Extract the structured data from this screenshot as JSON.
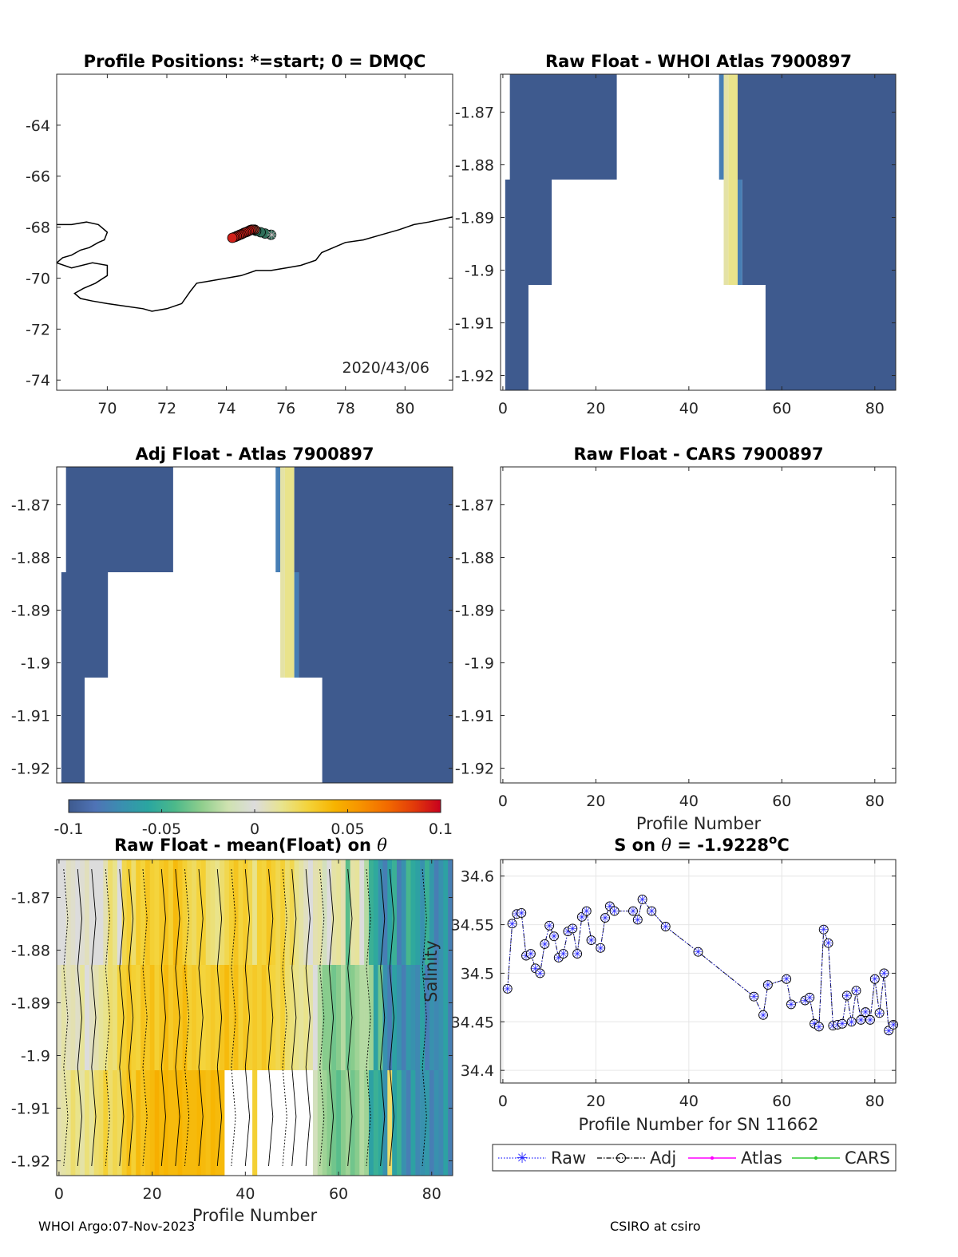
{
  "footer": {
    "left": "WHOI Argo:07-Nov-2023",
    "right": "CSIRO at csiro"
  },
  "colors": {
    "dark_blue": "#3e5a8e",
    "light_green": "#a8d08d",
    "green": "#7fcf80",
    "marker_blue": "#2a2aff",
    "atlas_line": "#ff00ff",
    "cars_line": "#33cc33"
  },
  "chart_data": [
    {
      "id": "positions",
      "type": "scatter",
      "title": "Profile Positions: *=start; 0 = DMQC",
      "xlim": [
        68.3,
        81.6
      ],
      "ylim": [
        -74.4,
        -62.0
      ],
      "xticks": [
        "70",
        "72",
        "74",
        "76",
        "78",
        "80"
      ],
      "yticks": [
        "-64",
        "-66",
        "-68",
        "-70",
        "-72",
        "-74"
      ],
      "annotation": "2020/43/06",
      "coastline_lon": [
        68.3,
        68.8,
        69.3,
        69.7,
        70.0,
        69.9,
        69.7,
        69.4,
        69.1,
        68.8,
        68.5,
        68.3,
        68.8,
        69.5,
        70.0,
        70.0,
        69.6,
        69.2,
        68.9,
        69.1,
        69.5,
        70.0,
        70.6,
        71.2,
        71.5,
        72.0,
        72.5,
        72.8,
        73.0,
        73.5,
        74.0,
        74.5,
        75.0,
        75.5,
        76.0,
        76.5,
        77.0,
        77.2,
        77.6,
        78.0,
        78.6,
        79.2,
        79.8,
        80.3,
        80.8,
        81.2,
        81.6
      ],
      "coastline_lat": [
        -67.9,
        -67.9,
        -67.8,
        -67.9,
        -68.2,
        -68.5,
        -68.6,
        -68.8,
        -68.9,
        -69.1,
        -69.2,
        -69.4,
        -69.6,
        -69.4,
        -69.5,
        -69.9,
        -70.2,
        -70.4,
        -70.6,
        -70.8,
        -70.9,
        -71.0,
        -71.1,
        -71.2,
        -71.3,
        -71.2,
        -71.0,
        -70.5,
        -70.2,
        -70.1,
        -70.0,
        -69.9,
        -69.7,
        -69.7,
        -69.6,
        -69.5,
        -69.3,
        -69.0,
        -68.8,
        -68.6,
        -68.5,
        -68.3,
        -68.1,
        -67.9,
        -67.8,
        -67.7,
        -67.6
      ],
      "profiles_lon": [
        75.5,
        75.3,
        75.15,
        75.0,
        74.95,
        74.9,
        74.85,
        74.8,
        74.75,
        74.7,
        74.65,
        74.6,
        74.55,
        74.5,
        74.45,
        74.4,
        74.35,
        74.3,
        74.25,
        74.2
      ],
      "profiles_lat": [
        -68.3,
        -68.25,
        -68.2,
        -68.15,
        -68.1,
        -68.1,
        -68.1,
        -68.12,
        -68.15,
        -68.18,
        -68.2,
        -68.22,
        -68.25,
        -68.28,
        -68.3,
        -68.33,
        -68.35,
        -68.38,
        -68.4,
        -68.42
      ]
    },
    {
      "id": "raw_whoi",
      "type": "heatmap",
      "title": "Raw Float - WHOI Atlas  7900897",
      "xlim": [
        -0.5,
        84.5
      ],
      "ylim": [
        -1.9228,
        -1.8628
      ],
      "xticks": [
        "0",
        "20",
        "40",
        "60",
        "80"
      ],
      "yticks": [
        "-1.87",
        "-1.88",
        "-1.89",
        "-1.9",
        "-1.91",
        "-1.92"
      ],
      "rects": [
        {
          "x0": 1.5,
          "x1": 24.5,
          "y0": -1.8828,
          "y1": -1.8628,
          "value": -0.1
        },
        {
          "x0": 46.5,
          "x1": 47.5,
          "y0": -1.8828,
          "y1": -1.8628,
          "value": -0.08
        },
        {
          "x0": 47.5,
          "x1": 48.5,
          "y0": -1.8828,
          "y1": -1.8628,
          "value": 0.01
        },
        {
          "x0": 48.5,
          "x1": 50.5,
          "y0": -1.8828,
          "y1": -1.8628,
          "value": 0.015
        },
        {
          "x0": 50.5,
          "x1": 84.5,
          "y0": -1.8828,
          "y1": -1.8628,
          "value": -0.1
        },
        {
          "x0": 0.5,
          "x1": 10.5,
          "y0": -1.9028,
          "y1": -1.8828,
          "value": -0.1
        },
        {
          "x0": 47.5,
          "x1": 48.5,
          "y0": -1.9028,
          "y1": -1.8828,
          "value": 0.01
        },
        {
          "x0": 48.5,
          "x1": 50.5,
          "y0": -1.9028,
          "y1": -1.8828,
          "value": 0.015
        },
        {
          "x0": 50.5,
          "x1": 51.5,
          "y0": -1.9028,
          "y1": -1.8828,
          "value": -0.08
        },
        {
          "x0": 51.5,
          "x1": 84.5,
          "y0": -1.9028,
          "y1": -1.8828,
          "value": -0.1
        },
        {
          "x0": 0.5,
          "x1": 5.5,
          "y0": -1.9228,
          "y1": -1.9028,
          "value": -0.1
        },
        {
          "x0": 56.5,
          "x1": 84.5,
          "y0": -1.9228,
          "y1": -1.9028,
          "value": -0.1
        }
      ]
    },
    {
      "id": "adj_atlas",
      "type": "heatmap",
      "title": "Adj Float - Atlas  7900897",
      "xlim": [
        -0.5,
        84.5
      ],
      "ylim": [
        -1.9228,
        -1.8628
      ],
      "xticks": [],
      "yticks": [
        "-1.87",
        "-1.88",
        "-1.89",
        "-1.9",
        "-1.91",
        "-1.92"
      ],
      "rects": [
        {
          "x0": 1.5,
          "x1": 24.5,
          "y0": -1.8828,
          "y1": -1.8628,
          "value": -0.1
        },
        {
          "x0": 46.5,
          "x1": 47.5,
          "y0": -1.8828,
          "y1": -1.8628,
          "value": -0.08
        },
        {
          "x0": 47.5,
          "x1": 48.5,
          "y0": -1.8828,
          "y1": -1.8628,
          "value": 0.01
        },
        {
          "x0": 48.5,
          "x1": 50.5,
          "y0": -1.8828,
          "y1": -1.8628,
          "value": 0.015
        },
        {
          "x0": 50.5,
          "x1": 84.5,
          "y0": -1.8828,
          "y1": -1.8628,
          "value": -0.1
        },
        {
          "x0": 0.5,
          "x1": 10.5,
          "y0": -1.9028,
          "y1": -1.8828,
          "value": -0.1
        },
        {
          "x0": 47.5,
          "x1": 48.5,
          "y0": -1.9028,
          "y1": -1.8828,
          "value": 0.01
        },
        {
          "x0": 48.5,
          "x1": 50.5,
          "y0": -1.9028,
          "y1": -1.8828,
          "value": 0.015
        },
        {
          "x0": 50.5,
          "x1": 51.5,
          "y0": -1.9028,
          "y1": -1.8828,
          "value": -0.08
        },
        {
          "x0": 51.5,
          "x1": 84.5,
          "y0": -1.9028,
          "y1": -1.8828,
          "value": -0.1
        },
        {
          "x0": 0.5,
          "x1": 5.5,
          "y0": -1.9228,
          "y1": -1.9028,
          "value": -0.1
        },
        {
          "x0": 56.5,
          "x1": 84.5,
          "y0": -1.9228,
          "y1": -1.9028,
          "value": -0.1
        }
      ]
    },
    {
      "id": "raw_cars",
      "type": "heatmap",
      "title": "Raw Float - CARS  7900897",
      "xlim": [
        -0.5,
        84.5
      ],
      "ylim": [
        -1.9228,
        -1.8628
      ],
      "xticks": [
        "0",
        "20",
        "40",
        "60",
        "80"
      ],
      "yticks": [
        "-1.87",
        "-1.88",
        "-1.89",
        "-1.9",
        "-1.91",
        "-1.92"
      ],
      "xlabel": "Profile Number",
      "rects": []
    },
    {
      "id": "colorbar",
      "type": "colorbar",
      "range": [
        -0.1,
        0.1
      ],
      "ticks": [
        "-0.1",
        "-0.05",
        "0",
        "0.05",
        "0.1"
      ],
      "stops": [
        "#3e5a8e",
        "#4f73b6",
        "#3a8fb0",
        "#2aa6a0",
        "#4cb98a",
        "#8fce8d",
        "#cfe2b0",
        "#dcdcdc",
        "#e8e48f",
        "#f4d33a",
        "#f7b400",
        "#f79200",
        "#f26a00",
        "#e23a0a",
        "#c8001e"
      ]
    },
    {
      "id": "raw_mean",
      "type": "heatmap",
      "title": "Raw Float - mean(Float) on ",
      "title_symbol": "θ",
      "xlim": [
        -0.5,
        84.5
      ],
      "ylim": [
        -1.9228,
        -1.8628
      ],
      "xticks": [
        "0",
        "20",
        "40",
        "60",
        "80"
      ],
      "yticks": [
        "-1.87",
        "-1.88",
        "-1.89",
        "-1.9",
        "-1.91",
        "-1.92"
      ],
      "xlabel": "Profile Number",
      "rows": [
        {
          "y0": -1.8828,
          "y1": -1.8628,
          "values": [
            0.0,
            0.0,
            0.005,
            0.003,
            0.0,
            0.002,
            0.006,
            0.0,
            0.0,
            0.0,
            0.008,
            0.02,
            0.015,
            0.0,
            0.025,
            0.03,
            0.02,
            0.032,
            0.028,
            0.035,
            0.03,
            0.028,
            0.033,
            0.036,
            0.03,
            0.04,
            0.035,
            0.03,
            0.025,
            0.022,
            0.028,
            0.03,
            0.02,
            0.018,
            0.015,
            0.02,
            0.025,
            0.03,
            0.035,
            0.028,
            0.032,
            0.025,
            0.015,
            0.03,
            0.028,
            0.035,
            0.03,
            0.025,
            0.03,
            0.02,
            0.025,
            0.015,
            0.01,
            0.005,
            0.0,
            0.008,
            0.01,
            -0.01,
            0.0,
            0.01,
            0.012,
            0.008,
            -0.04,
            0.01,
            0.012,
            0.0,
            -0.02,
            -0.05,
            -0.055,
            -0.07,
            -0.08,
            -0.06,
            -0.05,
            -0.08,
            -0.07,
            -0.045,
            -0.055,
            -0.06,
            -0.07,
            -0.05,
            -0.065,
            -0.08,
            -0.07,
            -0.06,
            -0.08
          ]
        },
        {
          "y0": -1.9028,
          "y1": -1.8828,
          "values": [
            0.005,
            0.01,
            0.006,
            0.008,
            0.004,
            0.012,
            0.0,
            0.005,
            0.008,
            0.012,
            0.015,
            0.02,
            0.018,
            0.028,
            0.03,
            0.035,
            0.03,
            0.028,
            0.036,
            0.033,
            0.038,
            0.03,
            0.035,
            0.04,
            0.033,
            0.037,
            0.035,
            0.04,
            0.03,
            0.033,
            0.03,
            0.028,
            0.03,
            0.033,
            0.03,
            0.035,
            0.04,
            0.033,
            0.038,
            0.03,
            0.035,
            0.03,
            0.033,
            0.03,
            0.035,
            0.03,
            0.028,
            0.025,
            0.03,
            0.02,
            0.018,
            0.015,
            0.012,
            0.015,
            0.01,
            0.0,
            -0.02,
            -0.03,
            -0.03,
            -0.035,
            -0.03,
            -0.02,
            -0.035,
            -0.03,
            -0.025,
            -0.02,
            -0.02,
            -0.025,
            -0.06,
            -0.035,
            -0.07,
            -0.08,
            -0.06,
            -0.07,
            -0.08,
            -0.065,
            -0.07,
            -0.075,
            -0.06,
            -0.08,
            -0.07,
            -0.075,
            -0.07,
            -0.06,
            -0.08
          ]
        },
        {
          "y0": -1.9228,
          "y1": -1.9028,
          "values": [
            0.008,
            0.01,
            0.012,
            0.02,
            0.015,
            0.01,
            0.018,
            0.012,
            0.02,
            0.022,
            0.03,
            0.02,
            0.025,
            0.022,
            0.032,
            0.038,
            0.03,
            0.04,
            0.035,
            0.038,
            0.04,
            0.045,
            0.04,
            0.042,
            0.04,
            0.04,
            0.043,
            0.04,
            0.04,
            0.04,
            0.042,
            0.04,
            0.038,
            0.042,
            0.04,
            0.04,
            null,
            null,
            null,
            null,
            null,
            null,
            0.03,
            null,
            null,
            null,
            null,
            null,
            null,
            null,
            null,
            null,
            null,
            null,
            null,
            -0.01,
            -0.02,
            -0.025,
            -0.03,
            -0.035,
            -0.04,
            -0.03,
            -0.025,
            -0.035,
            -0.03,
            -0.02,
            -0.025,
            -0.06,
            -0.05,
            -0.055,
            -0.07,
            0.02,
            -0.06,
            -0.05,
            -0.07,
            -0.08,
            -0.06,
            -0.075,
            -0.07,
            -0.065,
            -0.08,
            -0.07,
            -0.075,
            -0.06,
            -0.08
          ]
        }
      ]
    },
    {
      "id": "salinity",
      "type": "line",
      "title": "S on ",
      "title_symbol": "θ",
      "title_value": " = -1.9228",
      "title_sup": "o",
      "title_unit": "C",
      "xlabel": "Profile Number for SN 11662",
      "ylabel": "Salinity",
      "xlim": [
        -0.5,
        84.5
      ],
      "ylim": [
        34.387,
        34.617
      ],
      "xticks": [
        "0",
        "20",
        "40",
        "60",
        "80"
      ],
      "yticks": [
        "34.6",
        "34.55",
        "34.5",
        "34.45",
        "34.4"
      ],
      "grid": true,
      "legend": {
        "placement": "bottom",
        "entries": [
          "Raw",
          "Adj",
          "Atlas",
          "CARS"
        ]
      },
      "series": [
        {
          "name": "Adj",
          "x": [
            1,
            2,
            3,
            4,
            5,
            6,
            7,
            8,
            9,
            10,
            11,
            12,
            13,
            14,
            15,
            16,
            17,
            18,
            19,
            21,
            22,
            23,
            24,
            28,
            29,
            30,
            32,
            35,
            42,
            54,
            56,
            57,
            61,
            62,
            65,
            66,
            67,
            68,
            69,
            70,
            71,
            72,
            73,
            74,
            75,
            76,
            77,
            78,
            79,
            80,
            81,
            82,
            83,
            84
          ],
          "y": [
            34.484,
            34.551,
            34.561,
            34.562,
            34.518,
            34.52,
            34.505,
            34.5,
            34.53,
            34.549,
            34.538,
            34.516,
            34.52,
            34.543,
            34.546,
            34.52,
            34.558,
            34.564,
            34.534,
            34.526,
            34.557,
            34.569,
            34.564,
            34.564,
            34.555,
            34.576,
            34.564,
            34.548,
            34.522,
            34.476,
            34.457,
            34.488,
            34.494,
            34.468,
            34.472,
            34.475,
            34.448,
            34.445,
            34.545,
            34.531,
            34.446,
            34.447,
            34.448,
            34.477,
            34.45,
            34.482,
            34.452,
            34.46,
            34.452,
            34.494,
            34.459,
            34.5,
            34.441,
            34.447
          ]
        }
      ]
    }
  ]
}
